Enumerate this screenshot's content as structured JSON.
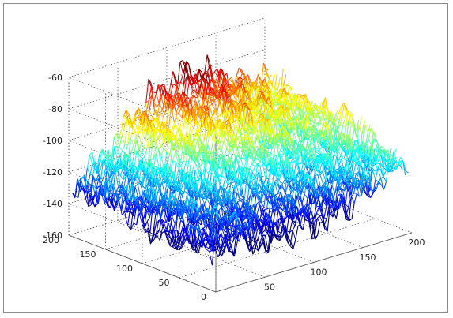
{
  "chart_data": {
    "type": "surface",
    "title": "",
    "xlabel": "",
    "ylabel": "",
    "zlabel": "",
    "grid": true,
    "colormap": "jet",
    "x_ticks": [
      0,
      50,
      100,
      150,
      200
    ],
    "y_ticks": [
      0,
      50,
      100,
      150,
      200
    ],
    "z_ticks": [
      -60,
      -80,
      -100,
      -120,
      -140,
      -160
    ],
    "x_tick_labels": [
      "",
      "50",
      "100",
      "150",
      "200"
    ],
    "y_tick_labels": [
      "0",
      "50",
      "100",
      "150",
      "200"
    ],
    "z_tick_labels": [
      "-60",
      "-80",
      "-100",
      "-120",
      "-140",
      "-160"
    ],
    "xlim": [
      0,
      200
    ],
    "ylim": [
      0,
      200
    ],
    "zlim": [
      -160,
      -60
    ],
    "surface_profiles": [
      {
        "y": 50,
        "x": [
          0,
          20,
          40,
          60,
          80,
          100,
          120,
          140,
          160,
          180,
          200
        ],
        "z": [
          -135,
          -130,
          -128,
          -130,
          -126,
          -124,
          -122,
          -120,
          -118,
          -115,
          -110
        ]
      },
      {
        "y": 150,
        "x": [
          0,
          20,
          40,
          60,
          80,
          100,
          120,
          140,
          160,
          180,
          200
        ],
        "z": [
          -130,
          -125,
          -118,
          -105,
          -100,
          -95,
          -92,
          -96,
          -100,
          -104,
          -100
        ]
      }
    ]
  }
}
